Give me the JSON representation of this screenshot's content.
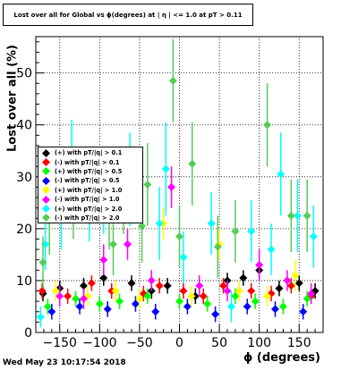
{
  "chart_data": {
    "type": "scatter",
    "title": "Lost over all for Global vs ϕ(degrees) at | η | <= 1.0 at pT > 0.11",
    "xlabel": "ϕ (degrees)",
    "ylabel": "Lost over all (%)",
    "xlim": [
      -180,
      180
    ],
    "ylim": [
      0,
      57
    ],
    "xticks": [
      -150,
      -100,
      -50,
      0,
      50,
      100,
      150
    ],
    "yticks": [
      0,
      10,
      20,
      30,
      40,
      50
    ],
    "grid": true,
    "legend_position": "middle-left",
    "series": [
      {
        "name": "(+) with pT/|q| > 0.1",
        "color": "#000000",
        "x": [
          -171,
          -150,
          -120,
          -95,
          -60,
          -35,
          -15,
          20,
          60,
          80,
          100,
          125,
          150,
          170
        ],
        "y": [
          7.5,
          8.5,
          9,
          10.5,
          9.5,
          8,
          9,
          7,
          10,
          10.5,
          12,
          8.5,
          9.5,
          8
        ],
        "err": [
          1.5,
          1.5,
          1.5,
          1.5,
          1.5,
          1.5,
          1.5,
          1.5,
          1.5,
          1.5,
          1.5,
          1.5,
          1.5,
          1.5
        ]
      },
      {
        "name": "(-) with pT/|q| > 0.1",
        "color": "#ff0000",
        "x": [
          -172,
          -140,
          -110,
          -85,
          -45,
          -25,
          5,
          30,
          55,
          90,
          115,
          140,
          165
        ],
        "y": [
          8,
          7,
          9.5,
          8,
          7.5,
          9,
          8,
          7,
          9,
          8,
          7.5,
          9,
          7
        ],
        "err": [
          1.5,
          1.5,
          1.5,
          1.5,
          1.5,
          1.5,
          1.5,
          1.5,
          1.5,
          1.5,
          1.5,
          1.5,
          1.5
        ]
      },
      {
        "name": "(+) with pT/|q| > 0.5",
        "color": "#00ff00",
        "x": [
          -165,
          -130,
          -100,
          -75,
          -40,
          0,
          35,
          70,
          95,
          130,
          160
        ],
        "y": [
          5,
          6.5,
          5.5,
          6,
          7,
          6,
          5.5,
          7,
          6,
          5,
          6.5
        ],
        "err": [
          1.5,
          1.5,
          1.5,
          1.5,
          1.5,
          1.5,
          1.5,
          1.5,
          1.5,
          1.5,
          1.5
        ]
      },
      {
        "name": "(-) with pT/|q| > 0.5",
        "color": "#0000ff",
        "x": [
          -160,
          -125,
          -90,
          -55,
          -30,
          10,
          45,
          85,
          120,
          155
        ],
        "y": [
          4,
          5,
          4.5,
          5.5,
          4,
          5,
          3.5,
          5,
          4.5,
          4
        ],
        "err": [
          1.5,
          1.5,
          1.5,
          1.5,
          1.5,
          1.5,
          1.5,
          1.5,
          1.5,
          1.5
        ]
      },
      {
        "name": "(+) with pT/|q| > 1.0",
        "color": "#ffff00",
        "x": [
          -155,
          -115,
          -80,
          -50,
          -20,
          15,
          50,
          75,
          110,
          145
        ],
        "y": [
          8,
          7,
          8,
          6.5,
          21,
          7,
          17,
          8,
          7,
          11
        ],
        "err": [
          2,
          2,
          2,
          2,
          3,
          2,
          3,
          2,
          2,
          3
        ]
      },
      {
        "name": "(-) with pT/|q| > 1.0",
        "color": "#ff00ff",
        "x": [
          -150,
          -120,
          -95,
          -65,
          -35,
          -10,
          25,
          60,
          100,
          135,
          165
        ],
        "y": [
          7,
          6.5,
          14,
          17,
          10,
          28,
          9,
          8,
          13,
          10,
          7.5
        ],
        "err": [
          2,
          2,
          3,
          3,
          2,
          4,
          2,
          2,
          3,
          2,
          2
        ]
      },
      {
        "name": "(+) with pT/|q| > 2.0",
        "color": "#00ffff",
        "x": [
          -174,
          -168,
          -148,
          -135,
          -113,
          -95,
          -62,
          -25,
          -17,
          5,
          40,
          65,
          90,
          115,
          127,
          148,
          168
        ],
        "y": [
          3,
          17,
          23,
          31,
          23.5,
          26,
          29.5,
          21,
          31.5,
          14.5,
          21,
          5,
          19.5,
          16,
          30.5,
          22.5,
          18.5
        ],
        "err": [
          2,
          5,
          7,
          10,
          6,
          7,
          9,
          7,
          9,
          5,
          6,
          3,
          6,
          5,
          8,
          7,
          6
        ]
      },
      {
        "name": "(-) with pT/|q| > 2.0",
        "color": "#55cc55",
        "x": [
          -171,
          -163,
          -133,
          -88,
          -83,
          -70,
          -47,
          -40,
          -8,
          0,
          16,
          48,
          70,
          110,
          140,
          160
        ],
        "y": [
          13.5,
          22,
          26,
          24,
          17,
          27,
          20.5,
          28.5,
          48.5,
          18.5,
          32.5,
          16.5,
          19.5,
          40,
          22.5,
          22.5
        ],
        "err": [
          5,
          7,
          8,
          8,
          6,
          8,
          7,
          8,
          8,
          6,
          8,
          6,
          6,
          8,
          7,
          7
        ]
      }
    ]
  }
}
